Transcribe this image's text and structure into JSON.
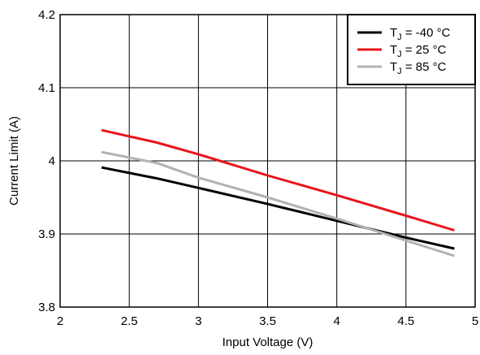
{
  "chart_data": {
    "type": "line",
    "title": "",
    "xlabel": "Input Voltage (V)",
    "ylabel": "Current Limit (A)",
    "xlim": [
      2,
      5
    ],
    "ylim": [
      3.8,
      4.2
    ],
    "x_ticks": [
      2,
      2.5,
      3,
      3.5,
      4,
      4.5,
      5
    ],
    "x_tick_labels": [
      "2",
      "2.5",
      "3",
      "3.5",
      "4",
      "4.5",
      "5"
    ],
    "y_ticks": [
      3.8,
      3.9,
      4,
      4.1,
      4.2
    ],
    "y_tick_labels": [
      "3.8",
      "3.9",
      "4",
      "4.1",
      "4.2"
    ],
    "grid": true,
    "legend_position": "top-right",
    "series": [
      {
        "name_main": "T",
        "name_sub": "J",
        "name_rest": " = -40 °C",
        "color": "#000000",
        "x": [
          2.3,
          2.7,
          3.0,
          3.5,
          4.0,
          4.5,
          4.85
        ],
        "y": [
          3.991,
          3.976,
          3.963,
          3.941,
          3.918,
          3.895,
          3.88
        ]
      },
      {
        "name_main": "T",
        "name_sub": "J",
        "name_rest": " = 25 °C",
        "color": "#e8141c",
        "x": [
          2.3,
          2.7,
          3.0,
          3.5,
          4.0,
          4.5,
          4.85
        ],
        "y": [
          4.042,
          4.025,
          4.009,
          3.98,
          3.953,
          3.925,
          3.905
        ]
      },
      {
        "name_main": "T",
        "name_sub": "J",
        "name_rest": " = 85 °C",
        "color": "#b2b2b2",
        "x": [
          2.3,
          2.7,
          3.0,
          3.5,
          4.0,
          4.5,
          4.85
        ],
        "y": [
          4.012,
          3.997,
          3.977,
          3.95,
          3.921,
          3.891,
          3.87
        ]
      }
    ]
  }
}
